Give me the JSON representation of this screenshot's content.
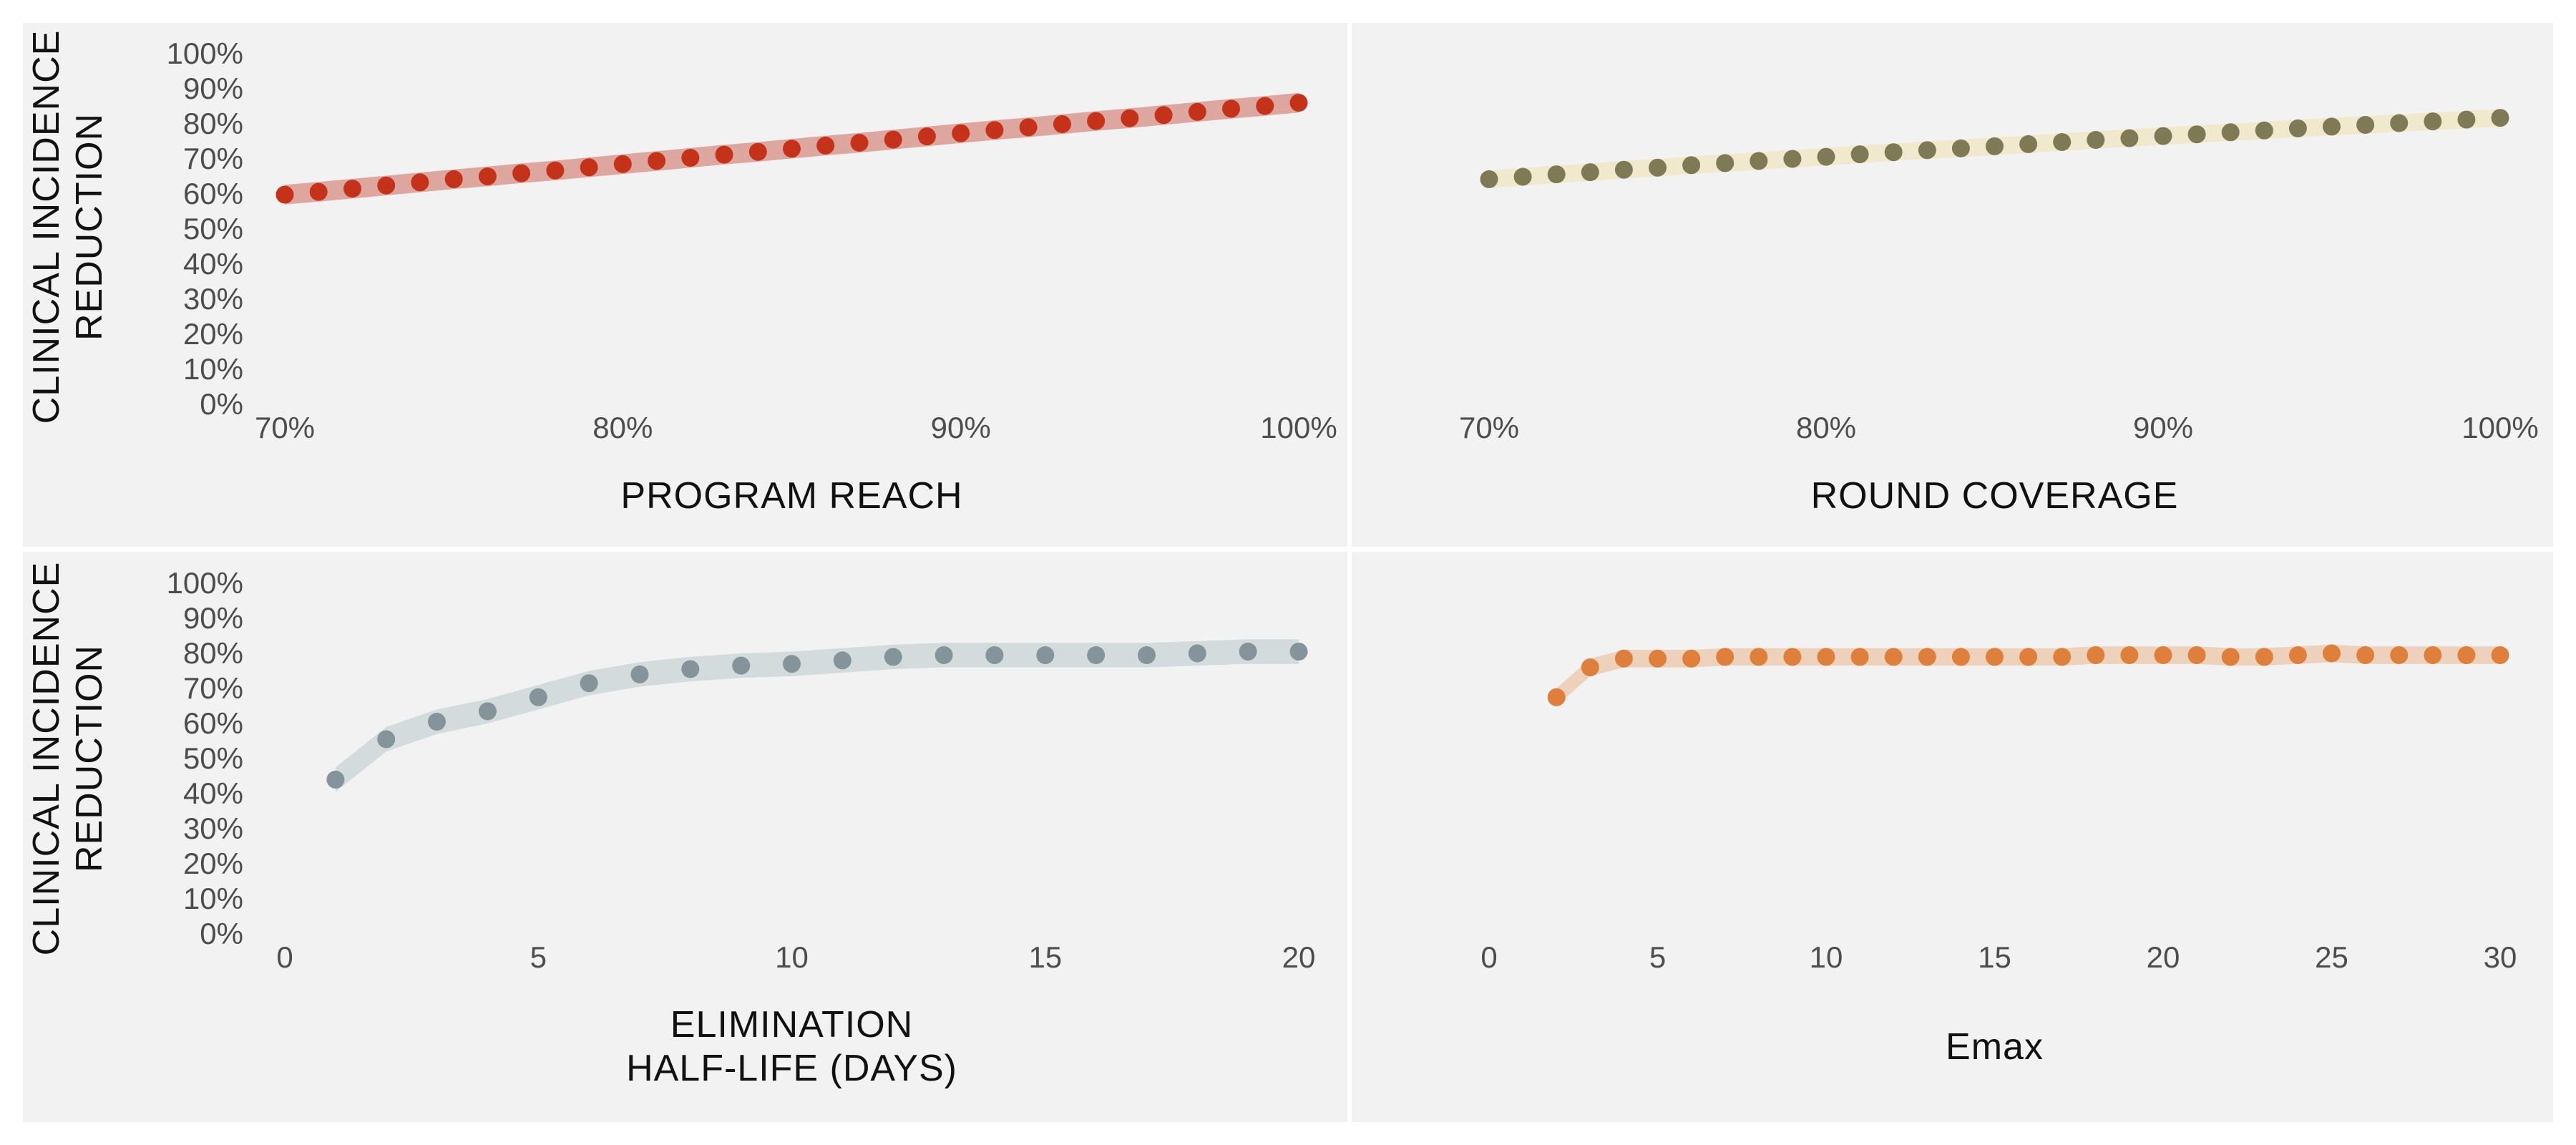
{
  "chart_data": [
    {
      "type": "scatter",
      "panel": "top-left",
      "xlabel": "PROGRAM  REACH",
      "ylabel": [
        "CLINICAL  INCIDENCE",
        "REDUCTION"
      ],
      "xlim": [
        70,
        100
      ],
      "ylim": [
        0,
        100
      ],
      "x_ticks": [
        70,
        80,
        90,
        100
      ],
      "x_tick_labels": [
        "70%",
        "80%",
        "90%",
        "100%"
      ],
      "y_ticks": [
        0,
        10,
        20,
        30,
        40,
        50,
        60,
        70,
        80,
        90,
        100
      ],
      "y_tick_labels": [
        "0%",
        "10%",
        "20%",
        "30%",
        "40%",
        "50%",
        "60%",
        "70%",
        "80%",
        "90%",
        "100%"
      ],
      "show_y_ticks": true,
      "color": "#c5321a",
      "band_color": "#d99a90",
      "band_halfwidth": 2.8,
      "x": [
        70,
        71,
        72,
        73,
        74,
        75,
        76,
        77,
        78,
        79,
        80,
        81,
        82,
        83,
        84,
        85,
        86,
        87,
        88,
        89,
        90,
        91,
        92,
        93,
        94,
        95,
        96,
        97,
        98,
        99,
        100
      ],
      "y": [
        59.8,
        60.6,
        61.5,
        62.4,
        63.3,
        64.2,
        65.0,
        65.9,
        66.7,
        67.6,
        68.5,
        69.4,
        70.3,
        71.2,
        72.0,
        72.9,
        73.8,
        74.6,
        75.5,
        76.4,
        77.3,
        78.2,
        79.0,
        79.9,
        80.8,
        81.6,
        82.5,
        83.4,
        84.3,
        85.1,
        86.0
      ]
    },
    {
      "type": "scatter",
      "panel": "top-right",
      "xlabel": "ROUND  COVERAGE",
      "ylabel": [],
      "xlim": [
        70,
        100
      ],
      "ylim": [
        0,
        100
      ],
      "x_ticks": [
        70,
        80,
        90,
        100
      ],
      "x_tick_labels": [
        "70%",
        "80%",
        "90%",
        "100%"
      ],
      "y_ticks": [],
      "y_tick_labels": [],
      "show_y_ticks": false,
      "color": "#7d7a55",
      "band_color": "#f1e8c8",
      "band_halfwidth": 2.5,
      "x": [
        70,
        71,
        72,
        73,
        74,
        75,
        76,
        77,
        78,
        79,
        80,
        81,
        82,
        83,
        84,
        85,
        86,
        87,
        88,
        89,
        90,
        91,
        92,
        93,
        94,
        95,
        96,
        97,
        98,
        99,
        100
      ],
      "y": [
        64.2,
        64.9,
        65.6,
        66.2,
        66.9,
        67.5,
        68.2,
        68.8,
        69.4,
        70.0,
        70.6,
        71.3,
        71.9,
        72.5,
        73.0,
        73.6,
        74.2,
        74.8,
        75.4,
        75.9,
        76.5,
        77.0,
        77.6,
        78.1,
        78.7,
        79.2,
        79.7,
        80.2,
        80.7,
        81.2,
        81.7
      ]
    },
    {
      "type": "scatter",
      "panel": "bottom-left",
      "xlabel": [
        "ELIMINATION",
        "HALF-LIFE  (DAYS)"
      ],
      "ylabel": [
        "CLINICAL  INCIDENCE",
        "REDUCTION"
      ],
      "xlim": [
        0,
        20
      ],
      "ylim": [
        0,
        100
      ],
      "x_ticks": [
        0,
        5,
        10,
        15,
        20
      ],
      "x_tick_labels": [
        "0",
        "5",
        "10",
        "15",
        "20"
      ],
      "y_ticks": [
        0,
        10,
        20,
        30,
        40,
        50,
        60,
        70,
        80,
        90,
        100
      ],
      "y_tick_labels": [
        "0%",
        "10%",
        "20%",
        "30%",
        "40%",
        "50%",
        "60%",
        "70%",
        "80%",
        "90%",
        "100%"
      ],
      "show_y_ticks": true,
      "color": "#84949a",
      "band_color": "#cfd7d8",
      "band_halfwidth": 3.5,
      "x": [
        1,
        2,
        3,
        4,
        5,
        6,
        7,
        8,
        9,
        10,
        11,
        12,
        13,
        14,
        15,
        16,
        17,
        18,
        19,
        20
      ],
      "y": [
        44.0,
        55.5,
        60.5,
        63.5,
        67.5,
        71.5,
        74.0,
        75.5,
        76.5,
        77.0,
        78.0,
        79.0,
        79.5,
        79.5,
        79.5,
        79.5,
        79.5,
        80.0,
        80.5,
        80.5
      ]
    },
    {
      "type": "scatter",
      "panel": "bottom-right",
      "xlabel": "Emax",
      "ylabel": [],
      "xlim": [
        0,
        30
      ],
      "ylim": [
        0,
        100
      ],
      "x_ticks": [
        0,
        5,
        10,
        15,
        20,
        25,
        30
      ],
      "x_tick_labels": [
        "0",
        "5",
        "10",
        "15",
        "20",
        "25",
        "30"
      ],
      "y_ticks": [],
      "y_tick_labels": [],
      "show_y_ticks": false,
      "color": "#de7f3b",
      "band_color": "#eccbb0",
      "band_halfwidth": 2.5,
      "x": [
        2,
        3,
        4,
        5,
        6,
        7,
        8,
        9,
        10,
        11,
        12,
        13,
        14,
        15,
        16,
        17,
        18,
        19,
        20,
        21,
        22,
        23,
        24,
        25,
        26,
        27,
        28,
        29,
        30
      ],
      "y": [
        67.5,
        76.0,
        78.5,
        78.5,
        78.5,
        79.0,
        79.0,
        79.0,
        79.0,
        79.0,
        79.0,
        79.0,
        79.0,
        79.0,
        79.0,
        79.0,
        79.5,
        79.5,
        79.5,
        79.5,
        79.0,
        79.0,
        79.5,
        80.0,
        79.5,
        79.5,
        79.5,
        79.5,
        79.5
      ]
    }
  ]
}
